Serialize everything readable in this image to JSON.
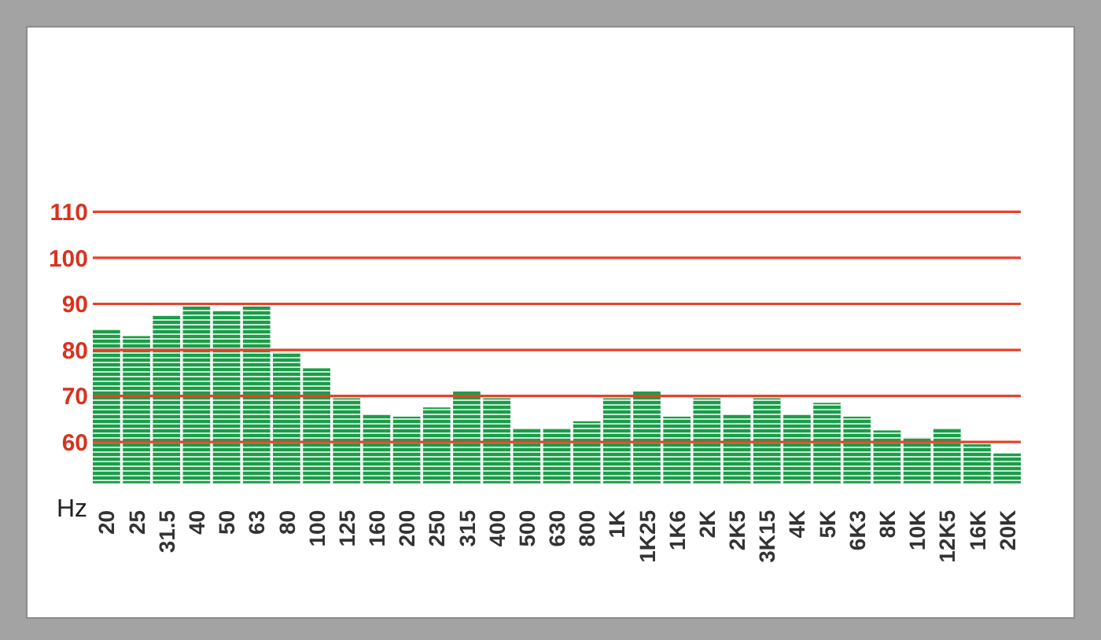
{
  "chart_data": {
    "type": "bar",
    "xlabel": "Hz",
    "categories": [
      "20",
      "25",
      "31.5",
      "40",
      "50",
      "63",
      "80",
      "100",
      "125",
      "160",
      "200",
      "250",
      "315",
      "400",
      "500",
      "630",
      "800",
      "1K",
      "1K25",
      "1K6",
      "2K",
      "2K5",
      "3K15",
      "4K",
      "5K",
      "6K3",
      "8K",
      "10K",
      "12K5",
      "16K",
      "20K"
    ],
    "values": [
      84.5,
      83,
      87.5,
      89.5,
      88.5,
      89.5,
      79.5,
      76,
      69.5,
      66,
      65.5,
      67.5,
      71,
      69.5,
      63,
      63,
      64.5,
      69.5,
      71,
      65.5,
      69.5,
      66,
      69.5,
      66,
      68.5,
      65.5,
      62.5,
      61,
      63,
      59.5,
      57.5
    ],
    "color": "#1a9e48",
    "ylim": [
      51,
      110
    ],
    "yticks": [
      60,
      70,
      80,
      90,
      100,
      110
    ],
    "grid": "y"
  }
}
